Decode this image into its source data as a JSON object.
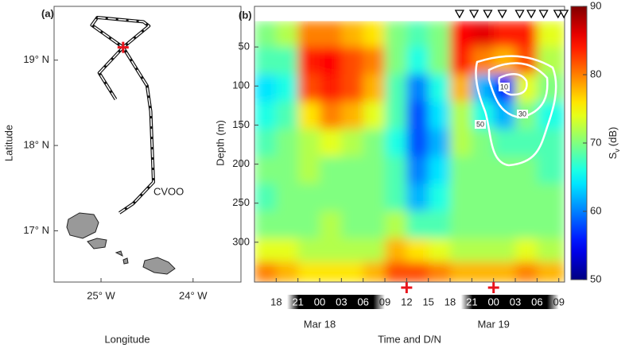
{
  "chart_data": [
    {
      "type": "map",
      "panel_label": "(a)",
      "xlabel": "Longitude",
      "ylabel": "Latitude",
      "xlim": [
        -25.51,
        -23.48
      ],
      "ylim": [
        16.4,
        19.63
      ],
      "xticks": [
        {
          "value": -25,
          "label": "25° W"
        },
        {
          "value": -24,
          "label": "24° W"
        }
      ],
      "yticks": [
        {
          "value": 17,
          "label": "17° N"
        },
        {
          "value": 18,
          "label": "18° N"
        },
        {
          "value": 19,
          "label": "19° N"
        }
      ],
      "track": {
        "lon": [
          -24.84,
          -25.02,
          -24.76,
          -24.48,
          -24.54,
          -25.04,
          -25.1,
          -24.76,
          -24.5,
          -24.46,
          -24.43,
          -24.65,
          -24.8
        ],
        "lat": [
          18.54,
          18.85,
          19.15,
          19.4,
          19.45,
          19.5,
          19.41,
          19.15,
          18.7,
          18.4,
          17.57,
          17.32,
          17.21
        ]
      },
      "track_color": "#111",
      "marker": {
        "lon": -24.76,
        "lat": 19.15,
        "color": "#e8141c"
      },
      "station_label": "CVOO"
    },
    {
      "type": "heatmap",
      "panel_label": "(b)",
      "xlabel": "Time and D/N",
      "ylabel": "Depth (m)",
      "xlim": [
        15,
        57.8
      ],
      "ylim": [
        351,
        -2
      ],
      "xticks": [
        {
          "value": 18,
          "label": "18"
        },
        {
          "value": 21,
          "label": "21"
        },
        {
          "value": 24,
          "label": "00"
        },
        {
          "value": 27,
          "label": "03"
        },
        {
          "value": 30,
          "label": "06"
        },
        {
          "value": 33,
          "label": "09"
        },
        {
          "value": 36,
          "label": "12"
        },
        {
          "value": 39,
          "label": "15"
        },
        {
          "value": 42,
          "label": "18"
        },
        {
          "value": 45,
          "label": "21"
        },
        {
          "value": 48,
          "label": "00"
        },
        {
          "value": 51,
          "label": "03"
        },
        {
          "value": 54,
          "label": "06"
        },
        {
          "value": 57,
          "label": "09"
        }
      ],
      "date_labels": [
        {
          "value": 24,
          "label": "Mar 18"
        },
        {
          "value": 48,
          "label": "Mar 19"
        }
      ],
      "night": [
        [
          19.5,
          33
        ],
        [
          43.5,
          57
        ]
      ],
      "yticks": [
        50,
        100,
        150,
        200,
        250,
        300
      ],
      "x_edges": [
        15,
        18,
        21,
        24,
        27,
        30,
        33,
        36,
        39,
        42,
        45,
        48,
        51,
        54,
        57.8
      ],
      "depth_edges": [
        17,
        50,
        85,
        120,
        155,
        190,
        225,
        260,
        295,
        325,
        351
      ],
      "values": [
        [
          70,
          72,
          80,
          80,
          78,
          76,
          70,
          68,
          70,
          85,
          86,
          84,
          84,
          74
        ],
        [
          68,
          68,
          84,
          85,
          82,
          80,
          70,
          66,
          70,
          84,
          80,
          78,
          82,
          72
        ],
        [
          64,
          66,
          82,
          84,
          82,
          78,
          68,
          60,
          66,
          78,
          62,
          56,
          74,
          70
        ],
        [
          66,
          68,
          76,
          80,
          78,
          74,
          68,
          58,
          64,
          72,
          66,
          62,
          70,
          66
        ],
        [
          68,
          70,
          72,
          74,
          72,
          70,
          66,
          58,
          62,
          72,
          70,
          68,
          68,
          68
        ],
        [
          70,
          70,
          72,
          70,
          70,
          70,
          68,
          60,
          64,
          70,
          70,
          70,
          70,
          68
        ],
        [
          68,
          70,
          70,
          70,
          70,
          70,
          68,
          62,
          66,
          70,
          70,
          70,
          70,
          70
        ],
        [
          70,
          70,
          70,
          72,
          70,
          70,
          72,
          68,
          68,
          70,
          70,
          70,
          70,
          70
        ],
        [
          74,
          74,
          72,
          72,
          72,
          72,
          78,
          76,
          74,
          72,
          72,
          72,
          74,
          72
        ],
        [
          80,
          78,
          76,
          76,
          76,
          78,
          82,
          82,
          80,
          78,
          78,
          78,
          80,
          78
        ]
      ],
      "clim": [
        50,
        90
      ],
      "colormap": "jet",
      "colorbar_ticks": [
        50,
        60,
        70,
        80,
        90
      ],
      "colorbar_label": {
        "main": "S",
        "sub": "v",
        "unit": "(dB)"
      },
      "contours": {
        "levels": [
          10,
          30,
          50
        ],
        "color": "#ffffff"
      },
      "red_markers_x": [
        36,
        48
      ],
      "marker_color": "#e8141c",
      "triangles_x": [
        43.3,
        45.3,
        47.2,
        49.2,
        51.6,
        53.2,
        54.9,
        56.9,
        57.7
      ]
    }
  ]
}
